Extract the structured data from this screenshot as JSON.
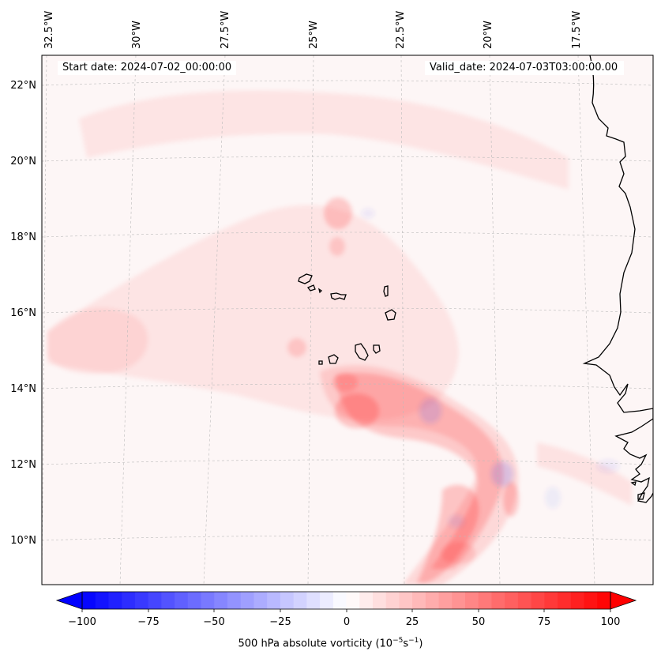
{
  "map": {
    "start_label": "Start date: 2024-07-02_00:00:00",
    "valid_label": "Valid_date: 2024-07-03T03:00:00.00",
    "lon_ticks": [
      "32.5°W",
      "30°W",
      "27.5°W",
      "25°W",
      "22.5°W",
      "20°W",
      "17.5°W"
    ],
    "lat_ticks": [
      "22°N",
      "20°N",
      "18°N",
      "16°N",
      "14°N",
      "12°N",
      "10°N"
    ],
    "extent": {
      "lon_min": -33.0,
      "lon_max": -15.6,
      "lat_min": 8.8,
      "lat_max": 22.8
    }
  },
  "colorbar": {
    "vmin": -100,
    "vmax": 100,
    "levels": 40,
    "ticks": [
      "−100",
      "−75",
      "−50",
      "−25",
      "0",
      "25",
      "50",
      "75",
      "100"
    ],
    "tick_values": [
      -100,
      -75,
      -50,
      -25,
      0,
      25,
      50,
      75,
      100
    ],
    "label_main": "500 hPa absolute vorticity (10",
    "label_exp1": "−5",
    "label_mid": "s",
    "label_exp2": "−1",
    "label_end": ")",
    "colors": {
      "min": "#0000ff",
      "mid": "#ffffff",
      "max": "#ff0000"
    }
  }
}
